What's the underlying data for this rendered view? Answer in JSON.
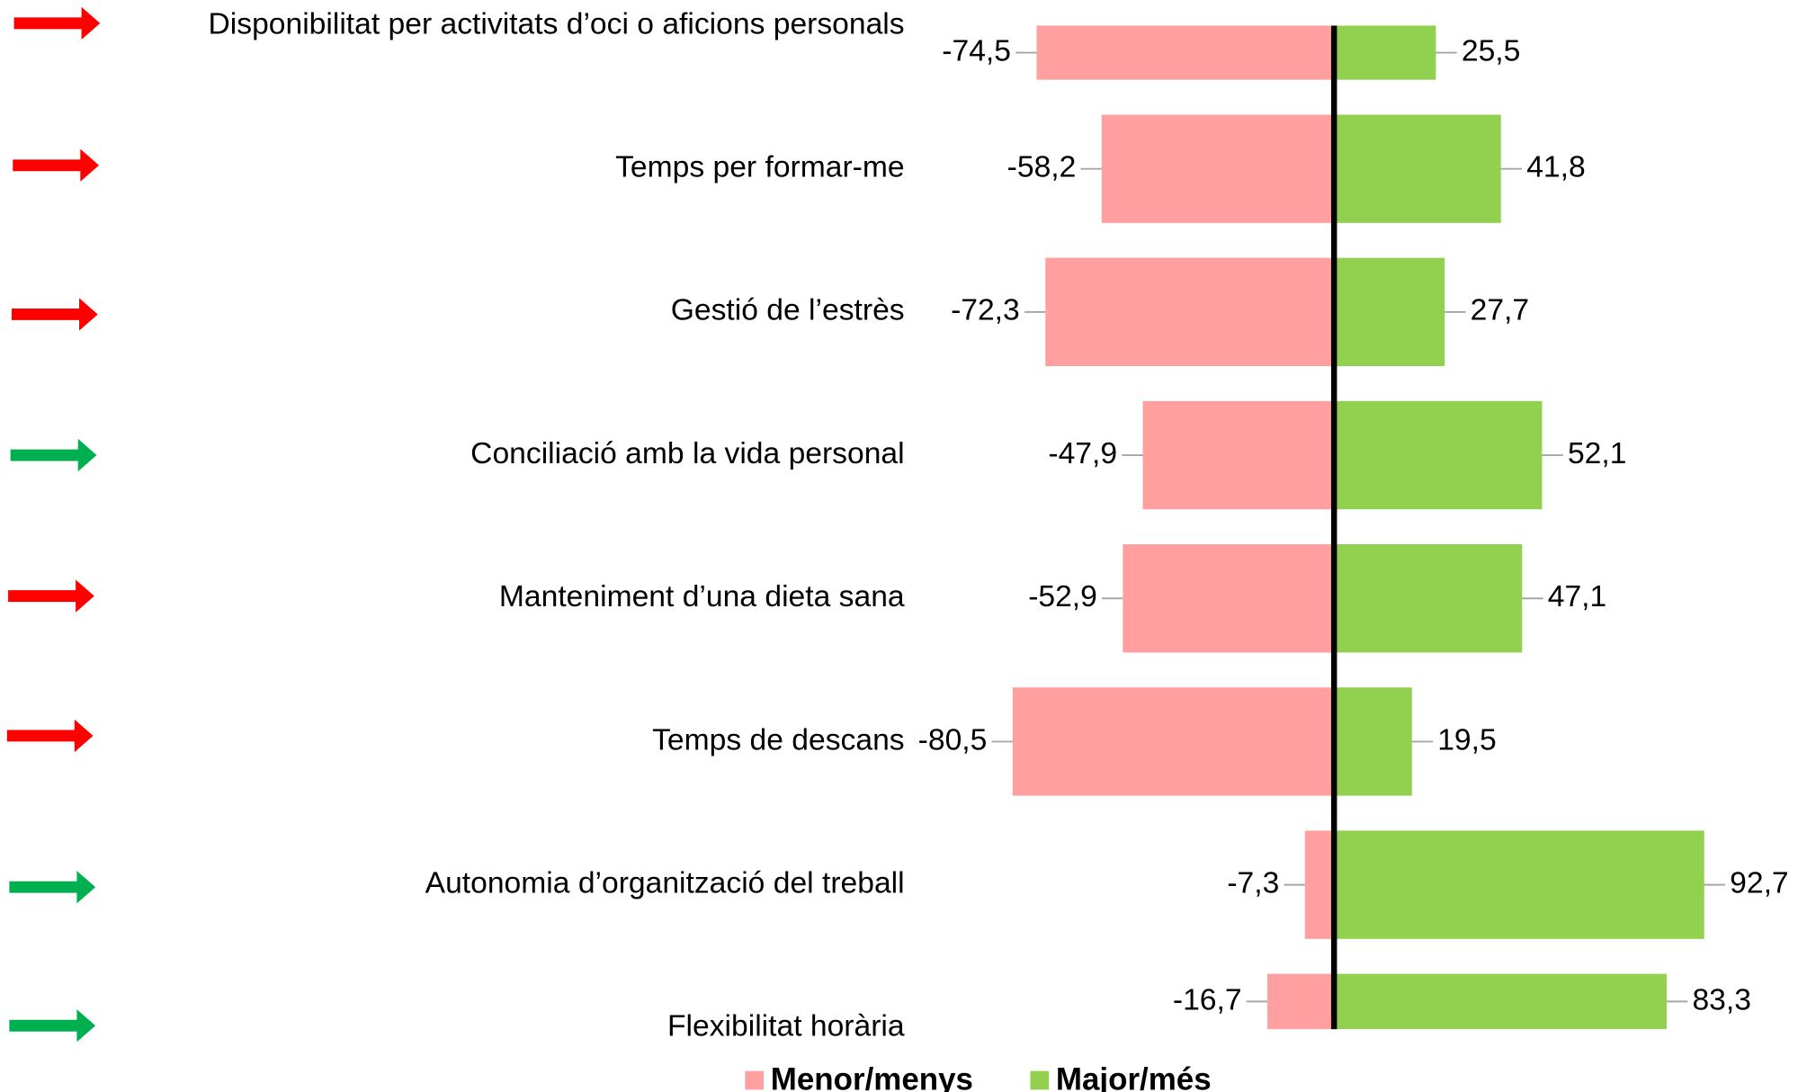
{
  "chart_data": {
    "type": "diverging_bar",
    "categories": [
      "Disponibilitat per activitats d’oci o aficions personals",
      "Temps per formar-me",
      "Gestió de l’estrès",
      "Conciliació amb la vida personal",
      "Manteniment d’una dieta sana",
      "Temps de descans",
      "Autonomia d’organització del treball",
      "Flexibilitat horària"
    ],
    "series": [
      {
        "name": "Menor/menys",
        "color": "#ff9f9f",
        "values": [
          -74.5,
          -58.2,
          -72.3,
          -47.9,
          -52.9,
          -80.5,
          -7.3,
          -16.7
        ],
        "value_labels": [
          "-74,5",
          "-58,2",
          "-72,3",
          "-47,9",
          "-52,9",
          "-80,5",
          "-7,3",
          "-16,7"
        ]
      },
      {
        "name": "Major/més",
        "color": "#92d050",
        "values": [
          25.5,
          41.8,
          27.7,
          52.1,
          47.1,
          19.5,
          92.7,
          83.3
        ],
        "value_labels": [
          "25,5",
          "41,8",
          "27,7",
          "52,1",
          "47,1",
          "19,5",
          "92,7",
          "83,3"
        ]
      }
    ],
    "legend": "bottom"
  }
}
